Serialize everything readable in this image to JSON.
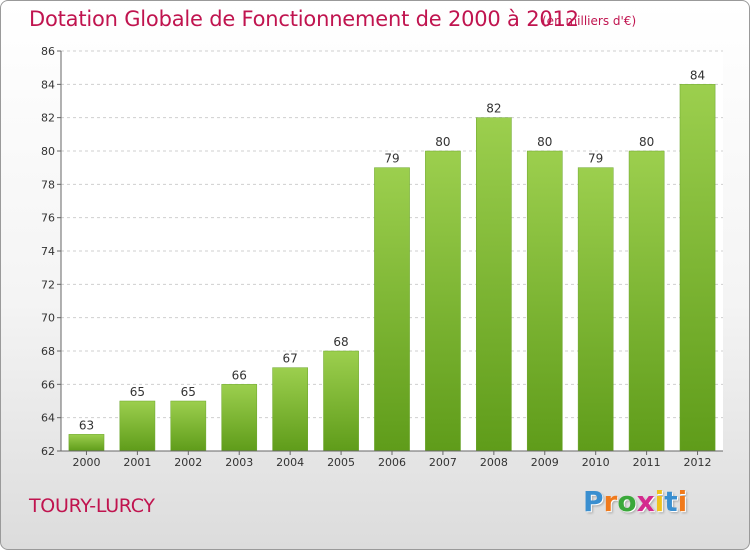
{
  "title": "Dotation Globale de Fonctionnement de 2000 à 2012",
  "subtitle": "(en milliers d'€)",
  "commune": "TOURY-LURCY",
  "logo": {
    "letters": [
      "P",
      "r",
      "o",
      "x",
      "i",
      "t",
      "i"
    ],
    "colors": [
      "#3a8fd0",
      "#f07a1c",
      "#3aa83a",
      "#d42a8e",
      "#f0c21c",
      "#3a8fd0",
      "#f07a1c"
    ]
  },
  "colors": {
    "title": "#c0144f",
    "bar_top": "#9ccf4e",
    "bar_bottom": "#5f9c1a"
  },
  "chart_data": {
    "type": "bar",
    "title": "Dotation Globale de Fonctionnement de 2000 à 2012",
    "subtitle": "(en milliers d'€)",
    "categories": [
      "2000",
      "2001",
      "2002",
      "2003",
      "2004",
      "2005",
      "2006",
      "2007",
      "2008",
      "2009",
      "2010",
      "2011",
      "2012"
    ],
    "values": [
      63,
      65,
      65,
      66,
      67,
      68,
      79,
      80,
      82,
      80,
      79,
      80,
      84
    ],
    "ylim": [
      62,
      86
    ],
    "yticks": [
      62,
      64,
      66,
      68,
      70,
      72,
      74,
      76,
      78,
      80,
      82,
      84,
      86
    ],
    "grid": true,
    "legend": "none"
  }
}
